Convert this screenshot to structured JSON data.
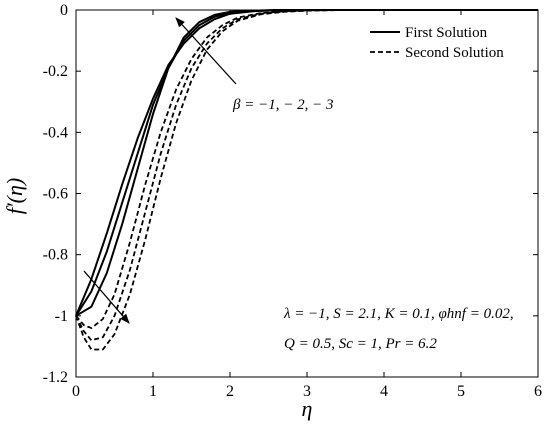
{
  "chart_data": {
    "type": "line",
    "xlabel": "η",
    "ylabel": "f′(η)",
    "xlim": [
      0,
      6
    ],
    "ylim": [
      -1.2,
      0
    ],
    "xticks": [
      "0",
      "1",
      "2",
      "3",
      "4",
      "5",
      "6"
    ],
    "yticks": [
      "0",
      "-0.2",
      "-0.4",
      "-0.6",
      "-0.8",
      "-1",
      "-1.2"
    ],
    "legend": {
      "placement": "top-right",
      "entries": [
        {
          "label": "First Solution",
          "style": "solid"
        },
        {
          "label": "Second Solution",
          "style": "dashed"
        }
      ]
    },
    "annotations": {
      "beta": "β = −1, − 2, − 3",
      "params_line1": "λ = −1, S = 2.1, K = 0.1, φhnf = 0.02,",
      "params_line2": "Q = 0.5, Sc = 1, Pr = 6.2"
    },
    "series": [
      {
        "group": "first",
        "style": "solid",
        "beta": -1,
        "x": [
          0,
          0.2,
          0.4,
          0.6,
          0.8,
          1.0,
          1.2,
          1.4,
          1.6,
          1.8,
          2.0,
          2.3,
          2.6,
          3.0,
          4.0,
          6.0
        ],
        "y": [
          -1,
          -0.88,
          -0.73,
          -0.57,
          -0.42,
          -0.29,
          -0.18,
          -0.11,
          -0.06,
          -0.03,
          -0.012,
          -0.004,
          -0.001,
          0,
          0,
          0
        ]
      },
      {
        "group": "first",
        "style": "solid",
        "beta": -2,
        "x": [
          0,
          0.2,
          0.4,
          0.6,
          0.8,
          1.0,
          1.2,
          1.4,
          1.6,
          1.8,
          2.0,
          2.3,
          2.6,
          3.0,
          4.0,
          6.0
        ],
        "y": [
          -1,
          -0.92,
          -0.79,
          -0.63,
          -0.47,
          -0.31,
          -0.19,
          -0.1,
          -0.05,
          -0.022,
          -0.009,
          -0.003,
          -0.001,
          0,
          0,
          0
        ]
      },
      {
        "group": "first",
        "style": "solid",
        "beta": -3,
        "x": [
          0,
          0.2,
          0.4,
          0.6,
          0.8,
          1.0,
          1.2,
          1.4,
          1.6,
          1.8,
          2.0,
          2.3,
          2.6,
          3.0,
          4.0,
          6.0
        ],
        "y": [
          -1,
          -0.97,
          -0.86,
          -0.7,
          -0.52,
          -0.34,
          -0.19,
          -0.09,
          -0.04,
          -0.016,
          -0.006,
          -0.002,
          0,
          0,
          0,
          0
        ]
      },
      {
        "group": "second",
        "style": "dashed",
        "beta": -1,
        "x": [
          0,
          0.1,
          0.2,
          0.35,
          0.5,
          0.7,
          0.9,
          1.1,
          1.3,
          1.5,
          1.7,
          1.9,
          2.1,
          2.4,
          2.7,
          3.0,
          3.5,
          6.0
        ],
        "y": [
          -1,
          -1.03,
          -1.04,
          -1.01,
          -0.93,
          -0.76,
          -0.57,
          -0.4,
          -0.26,
          -0.16,
          -0.09,
          -0.05,
          -0.025,
          -0.01,
          -0.004,
          -0.001,
          0,
          0
        ]
      },
      {
        "group": "second",
        "style": "dashed",
        "beta": -2,
        "x": [
          0,
          0.1,
          0.2,
          0.35,
          0.5,
          0.7,
          0.9,
          1.1,
          1.3,
          1.5,
          1.7,
          1.9,
          2.1,
          2.4,
          2.7,
          3.0,
          3.5,
          6.0
        ],
        "y": [
          -1,
          -1.05,
          -1.08,
          -1.07,
          -1.0,
          -0.85,
          -0.66,
          -0.47,
          -0.31,
          -0.19,
          -0.11,
          -0.06,
          -0.03,
          -0.012,
          -0.005,
          -0.002,
          0,
          0
        ]
      },
      {
        "group": "second",
        "style": "dashed",
        "beta": -3,
        "x": [
          0,
          0.1,
          0.2,
          0.35,
          0.5,
          0.7,
          0.9,
          1.1,
          1.3,
          1.5,
          1.7,
          1.9,
          2.1,
          2.4,
          2.7,
          3.0,
          3.5,
          6.0
        ],
        "y": [
          -1,
          -1.07,
          -1.11,
          -1.11,
          -1.06,
          -0.93,
          -0.75,
          -0.55,
          -0.37,
          -0.23,
          -0.13,
          -0.07,
          -0.035,
          -0.014,
          -0.006,
          -0.002,
          0,
          0
        ]
      }
    ]
  }
}
